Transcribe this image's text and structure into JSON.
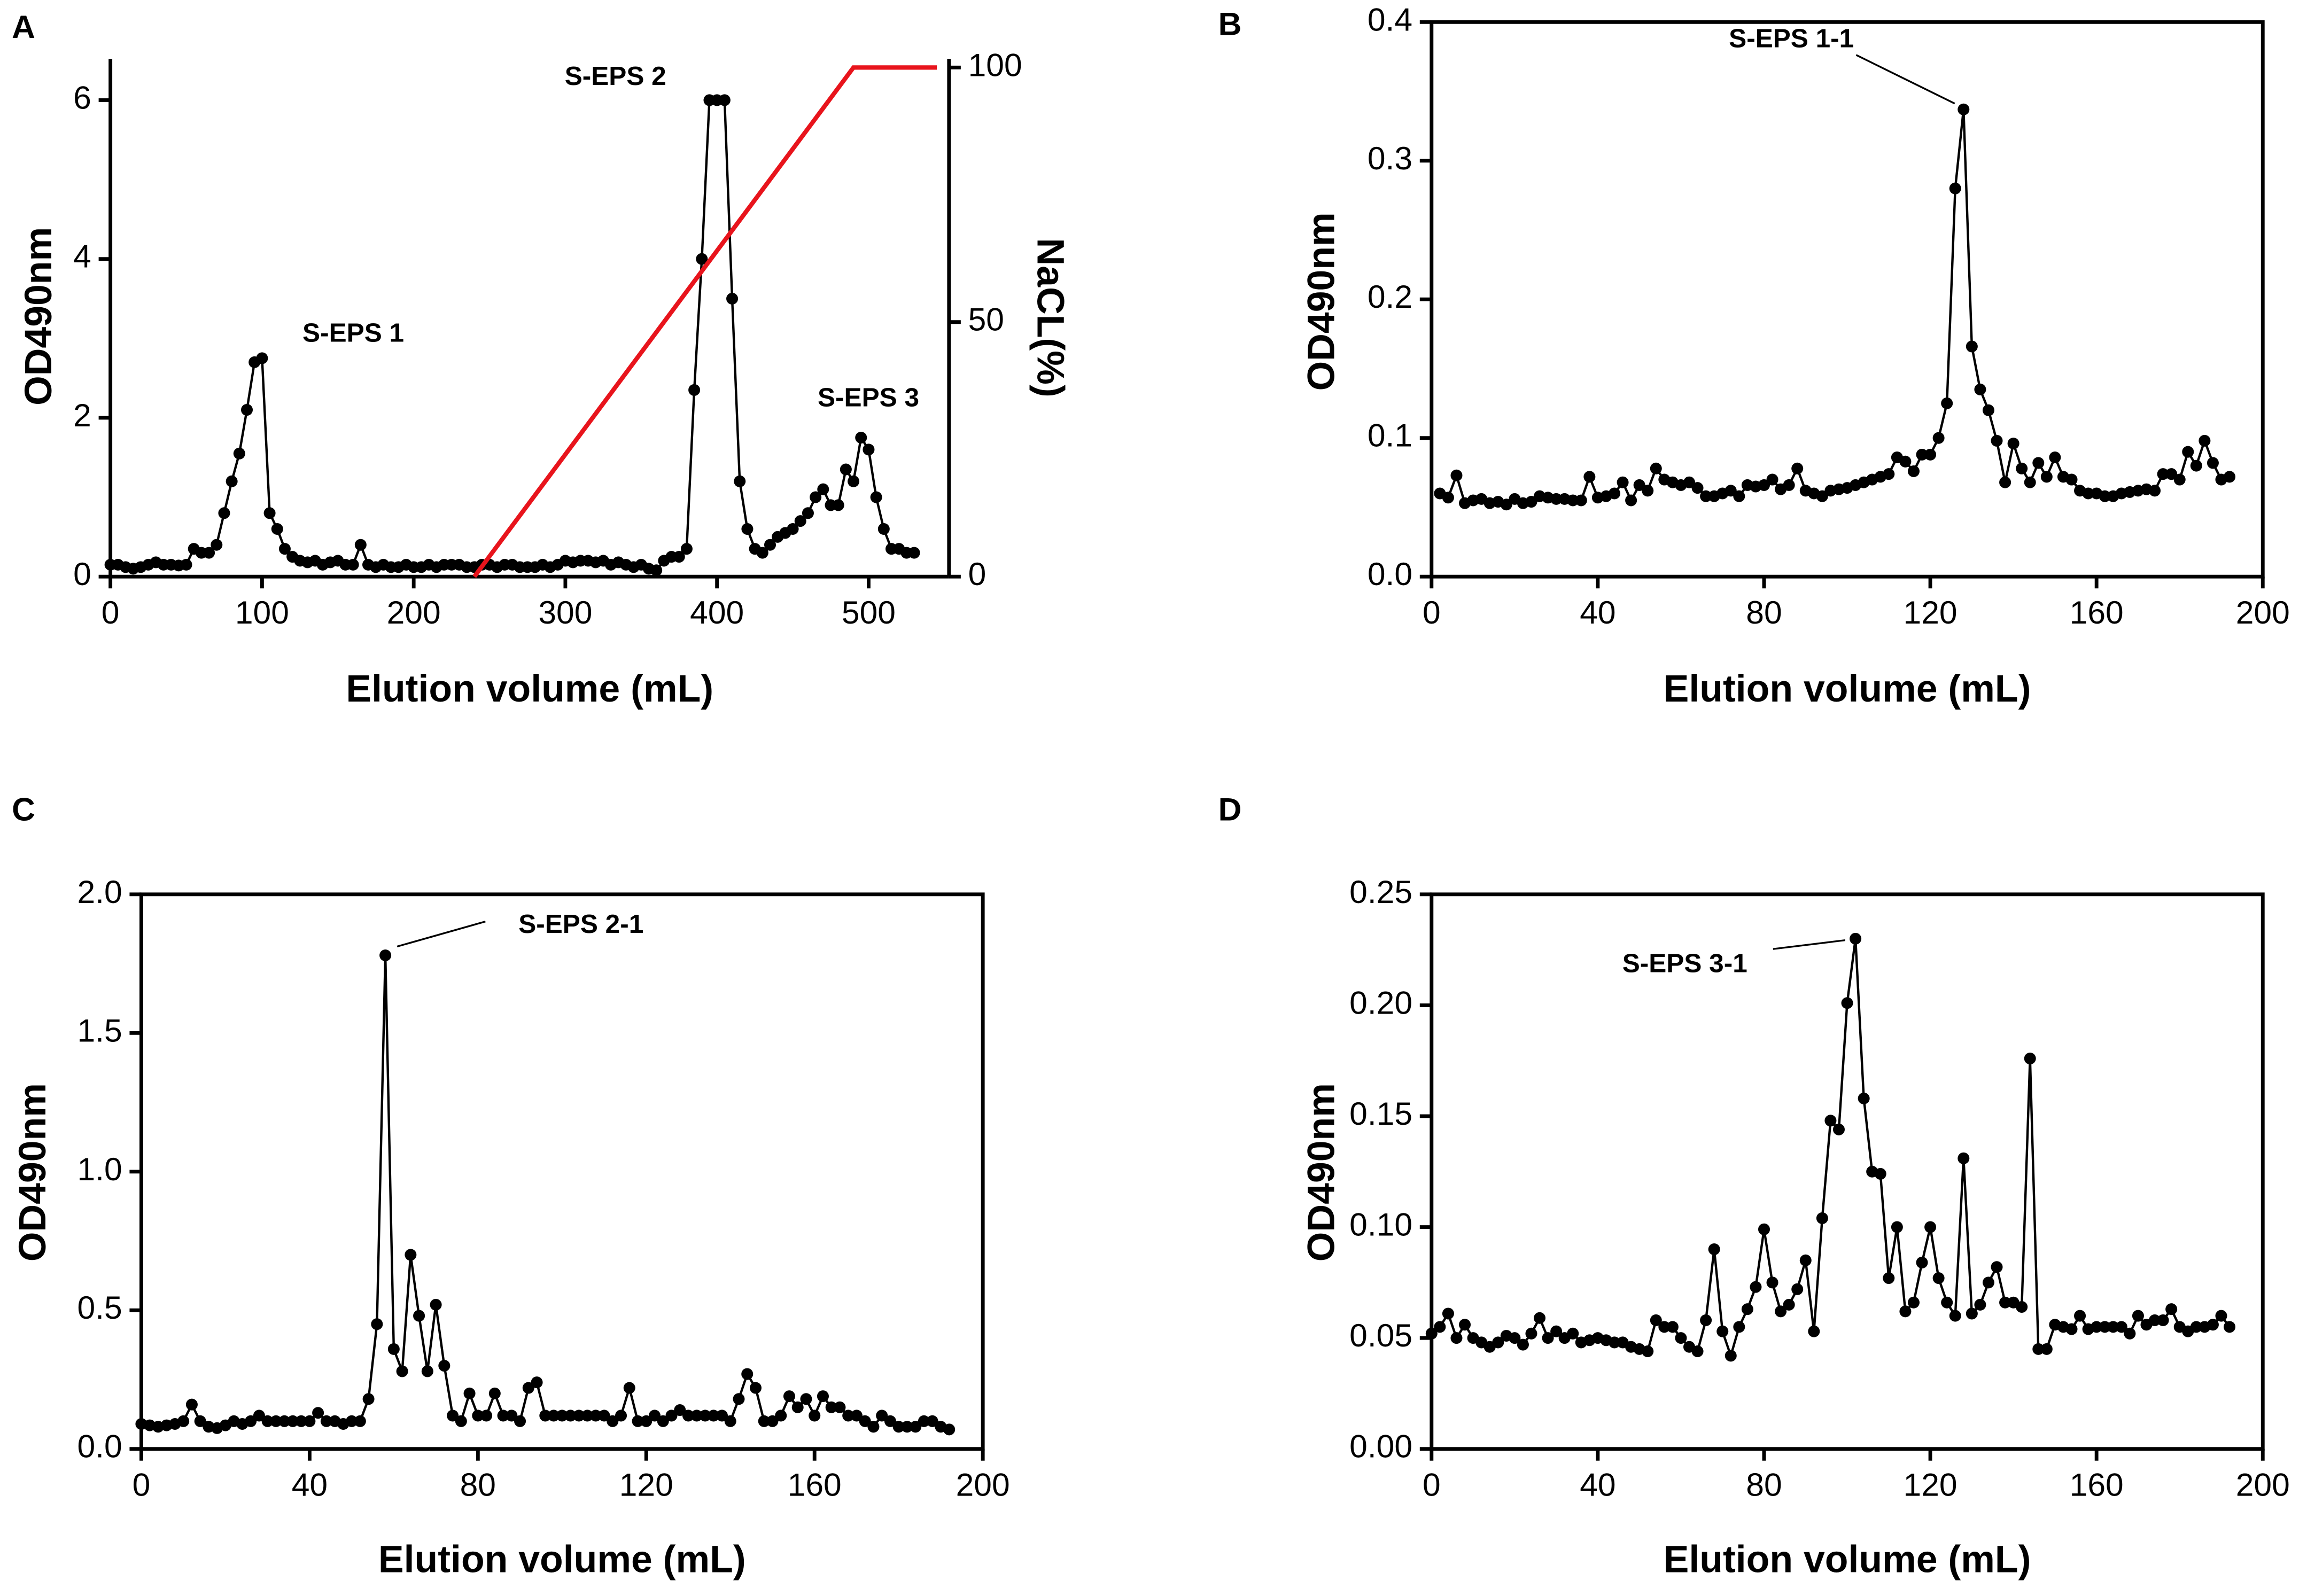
{
  "chart_data": [
    {
      "type": "line",
      "panel": "A",
      "xlabel": "Elution volume (mL)",
      "ylabel": "OD490nm",
      "y2label": "NaCL(%)",
      "xlim": [
        0,
        553
      ],
      "xticks": [
        0,
        100,
        200,
        300,
        400,
        500
      ],
      "ylim": [
        0,
        6.52
      ],
      "yticks": [
        0,
        2,
        4,
        6
      ],
      "y2lim": [
        0,
        101.7
      ],
      "y2ticks": [
        0,
        50,
        100
      ],
      "series": [
        {
          "color": "#000000",
          "markers": true,
          "x": [
            0,
            5,
            10,
            15,
            20,
            25,
            30,
            35,
            40,
            45,
            50,
            55,
            60,
            65,
            70,
            75,
            80,
            85,
            90,
            95,
            100,
            105,
            110,
            115,
            120,
            125,
            130,
            135,
            140,
            145,
            150,
            155,
            160,
            165,
            170,
            175,
            180,
            185,
            190,
            195,
            200,
            205,
            210,
            215,
            220,
            225,
            230,
            235,
            240,
            245,
            250,
            255,
            260,
            265,
            270,
            275,
            280,
            285,
            290,
            295,
            300,
            305,
            310,
            315,
            320,
            325,
            330,
            335,
            340,
            345,
            350,
            355,
            360,
            365,
            370,
            375,
            380,
            385,
            390,
            395,
            400,
            405,
            410,
            415,
            420,
            425,
            430,
            435,
            440,
            445,
            450,
            455,
            460,
            465,
            470,
            475,
            480,
            485,
            490,
            495,
            500,
            505,
            510,
            515,
            520,
            525,
            530
          ],
          "values": [
            0.15,
            0.15,
            0.12,
            0.1,
            0.12,
            0.15,
            0.18,
            0.15,
            0.15,
            0.14,
            0.15,
            0.35,
            0.3,
            0.3,
            0.4,
            0.8,
            1.2,
            1.55,
            2.1,
            2.7,
            2.75,
            0.8,
            0.6,
            0.35,
            0.25,
            0.2,
            0.18,
            0.2,
            0.15,
            0.18,
            0.2,
            0.15,
            0.15,
            0.4,
            0.15,
            0.12,
            0.15,
            0.12,
            0.12,
            0.15,
            0.12,
            0.12,
            0.15,
            0.12,
            0.15,
            0.15,
            0.15,
            0.12,
            0.12,
            0.15,
            0.15,
            0.12,
            0.15,
            0.15,
            0.12,
            0.12,
            0.12,
            0.15,
            0.12,
            0.15,
            0.2,
            0.18,
            0.2,
            0.2,
            0.18,
            0.2,
            0.15,
            0.18,
            0.15,
            0.12,
            0.15,
            0.1,
            0.08,
            0.2,
            0.25,
            0.25,
            0.35,
            2.35,
            4.0,
            6.0,
            6.0,
            6.0,
            3.5,
            1.2,
            0.6,
            0.35,
            0.3,
            0.4,
            0.5,
            0.55,
            0.6,
            0.7,
            0.8,
            1.0,
            1.1,
            0.9,
            0.9,
            1.35,
            1.2,
            1.75,
            1.6,
            1.0,
            0.6,
            0.35,
            0.35,
            0.3,
            0.3
          ]
        },
        {
          "color": "#e8141c",
          "markers": false,
          "axis": "y2",
          "x": [
            240,
            490,
            545
          ],
          "values": [
            0,
            100,
            100
          ]
        }
      ],
      "annotations": [
        {
          "text": "S-EPS 1",
          "x": 100,
          "y": 2.75
        },
        {
          "text": "S-EPS 2",
          "x": 400,
          "y": 6.0
        },
        {
          "text": "S-EPS 3",
          "x": 495,
          "y": 1.75
        }
      ]
    },
    {
      "type": "line",
      "panel": "B",
      "xlabel": "Elution volume (mL)",
      "ylabel": "OD490nm",
      "xlim": [
        0,
        200
      ],
      "xticks": [
        0,
        40,
        80,
        120,
        160,
        200
      ],
      "ylim": [
        0,
        0.4
      ],
      "yticks": [
        {
          "value": 0,
          "label": "0.0"
        },
        0.1,
        0.2,
        0.3,
        0.4
      ],
      "color": "#000000",
      "markers": true,
      "x": [
        2,
        4,
        6,
        8,
        10,
        12,
        14,
        16,
        18,
        20,
        22,
        24,
        26,
        28,
        30,
        32,
        34,
        36,
        38,
        40,
        42,
        44,
        46,
        48,
        50,
        52,
        54,
        56,
        58,
        60,
        62,
        64,
        66,
        68,
        70,
        72,
        74,
        76,
        78,
        80,
        82,
        84,
        86,
        88,
        90,
        92,
        94,
        96,
        98,
        100,
        102,
        104,
        106,
        108,
        110,
        112,
        114,
        116,
        118,
        120,
        122,
        124,
        126,
        128,
        130,
        132,
        134,
        136,
        138,
        140,
        142,
        144,
        146,
        148,
        150,
        152,
        154,
        156,
        158,
        160,
        162,
        164,
        166,
        168,
        170,
        172,
        174,
        176,
        178,
        180,
        182,
        184,
        186,
        188,
        190,
        192
      ],
      "values": [
        0.06,
        0.057,
        0.073,
        0.053,
        0.055,
        0.056,
        0.053,
        0.054,
        0.052,
        0.056,
        0.053,
        0.054,
        0.058,
        0.057,
        0.056,
        0.056,
        0.055,
        0.055,
        0.072,
        0.057,
        0.058,
        0.06,
        0.068,
        0.055,
        0.066,
        0.062,
        0.078,
        0.07,
        0.068,
        0.066,
        0.068,
        0.064,
        0.058,
        0.058,
        0.06,
        0.062,
        0.058,
        0.066,
        0.065,
        0.066,
        0.07,
        0.063,
        0.066,
        0.078,
        0.062,
        0.06,
        0.058,
        0.062,
        0.063,
        0.064,
        0.066,
        0.068,
        0.07,
        0.072,
        0.074,
        0.086,
        0.083,
        0.076,
        0.088,
        0.088,
        0.1,
        0.125,
        0.28,
        0.337,
        0.166,
        0.135,
        0.12,
        0.098,
        0.068,
        0.096,
        0.078,
        0.068,
        0.082,
        0.072,
        0.086,
        0.072,
        0.07,
        0.062,
        0.06,
        0.06,
        0.058,
        0.058,
        0.06,
        0.061,
        0.062,
        0.063,
        0.062,
        0.074,
        0.074,
        0.07,
        0.09,
        0.08,
        0.098,
        0.082,
        0.07,
        0.072
      ],
      "annotations": [
        {
          "text": "S-EPS 1-1",
          "x": 128,
          "y": 0.337
        }
      ]
    },
    {
      "type": "line",
      "panel": "C",
      "xlabel": "Elution volume (mL)",
      "ylabel": "OD490nm",
      "xlim": [
        0,
        200
      ],
      "xticks": [
        0,
        40,
        80,
        120,
        160,
        200
      ],
      "ylim": [
        0,
        2
      ],
      "yticks": [
        {
          "value": 0,
          "label": "0.0"
        },
        0.5,
        {
          "value": 1,
          "label": "1.0"
        },
        1.5,
        {
          "value": 2,
          "label": "2.0"
        }
      ],
      "color": "#000000",
      "markers": true,
      "x": [
        0,
        2,
        4,
        6,
        8,
        10,
        12,
        14,
        16,
        18,
        20,
        22,
        24,
        26,
        28,
        30,
        32,
        34,
        36,
        38,
        40,
        42,
        44,
        46,
        48,
        50,
        52,
        54,
        56,
        58,
        60,
        62,
        64,
        66,
        68,
        70,
        72,
        74,
        76,
        78,
        80,
        82,
        84,
        86,
        88,
        90,
        92,
        94,
        96,
        98,
        100,
        102,
        104,
        106,
        108,
        110,
        112,
        114,
        116,
        118,
        120,
        122,
        124,
        126,
        128,
        130,
        132,
        134,
        136,
        138,
        140,
        142,
        144,
        146,
        148,
        150,
        152,
        154,
        156,
        158,
        160,
        162,
        164,
        166,
        168,
        170,
        172,
        174,
        176,
        178,
        180,
        182,
        184,
        186,
        188,
        190,
        192
      ],
      "values": [
        0.09,
        0.085,
        0.08,
        0.085,
        0.09,
        0.1,
        0.16,
        0.1,
        0.08,
        0.075,
        0.085,
        0.1,
        0.09,
        0.1,
        0.12,
        0.1,
        0.1,
        0.1,
        0.1,
        0.1,
        0.1,
        0.13,
        0.1,
        0.1,
        0.09,
        0.1,
        0.1,
        0.18,
        0.45,
        1.78,
        0.36,
        0.28,
        0.7,
        0.48,
        0.28,
        0.52,
        0.3,
        0.12,
        0.1,
        0.2,
        0.12,
        0.12,
        0.2,
        0.12,
        0.12,
        0.1,
        0.22,
        0.24,
        0.12,
        0.12,
        0.12,
        0.12,
        0.12,
        0.12,
        0.12,
        0.12,
        0.1,
        0.12,
        0.22,
        0.1,
        0.1,
        0.12,
        0.1,
        0.12,
        0.14,
        0.12,
        0.12,
        0.12,
        0.12,
        0.12,
        0.1,
        0.18,
        0.27,
        0.22,
        0.1,
        0.1,
        0.12,
        0.19,
        0.15,
        0.18,
        0.12,
        0.19,
        0.15,
        0.15,
        0.12,
        0.12,
        0.1,
        0.08,
        0.12,
        0.1,
        0.08,
        0.08,
        0.08,
        0.1,
        0.1,
        0.08,
        0.07
      ],
      "annotations": [
        {
          "text": "S-EPS 2-1",
          "x": 58,
          "y": 1.78
        }
      ]
    },
    {
      "type": "line",
      "panel": "D",
      "xlabel": "Elution volume (mL)",
      "ylabel": "OD490nm",
      "xlim": [
        0,
        200
      ],
      "xticks": [
        0,
        40,
        80,
        120,
        160,
        200
      ],
      "ylim": [
        0,
        0.25
      ],
      "yticks": [
        {
          "value": 0,
          "label": "0.00"
        },
        0.05,
        {
          "value": 0.1,
          "label": "0.10"
        },
        0.15,
        {
          "value": 0.2,
          "label": "0.20"
        },
        0.25
      ],
      "color": "#000000",
      "markers": true,
      "x": [
        0,
        2,
        4,
        6,
        8,
        10,
        12,
        14,
        16,
        18,
        20,
        22,
        24,
        26,
        28,
        30,
        32,
        34,
        36,
        38,
        40,
        42,
        44,
        46,
        48,
        50,
        52,
        54,
        56,
        58,
        60,
        62,
        64,
        66,
        68,
        70,
        72,
        74,
        76,
        78,
        80,
        82,
        84,
        86,
        88,
        90,
        92,
        94,
        96,
        98,
        100,
        102,
        104,
        106,
        108,
        110,
        112,
        114,
        116,
        118,
        120,
        122,
        124,
        126,
        128,
        130,
        132,
        134,
        136,
        138,
        140,
        142,
        144,
        146,
        148,
        150,
        152,
        154,
        156,
        158,
        160,
        162,
        164,
        166,
        168,
        170,
        172,
        174,
        176,
        178,
        180,
        182,
        184,
        186,
        188,
        190,
        192
      ],
      "values": [
        0.052,
        0.055,
        0.061,
        0.05,
        0.056,
        0.05,
        0.048,
        0.046,
        0.048,
        0.051,
        0.05,
        0.047,
        0.052,
        0.059,
        0.05,
        0.053,
        0.05,
        0.052,
        0.048,
        0.049,
        0.05,
        0.049,
        0.048,
        0.048,
        0.046,
        0.045,
        0.044,
        0.058,
        0.055,
        0.055,
        0.05,
        0.046,
        0.044,
        0.058,
        0.09,
        0.053,
        0.042,
        0.055,
        0.063,
        0.073,
        0.099,
        0.075,
        0.062,
        0.065,
        0.072,
        0.085,
        0.053,
        0.104,
        0.148,
        0.144,
        0.201,
        0.23,
        0.158,
        0.125,
        0.124,
        0.077,
        0.1,
        0.062,
        0.066,
        0.084,
        0.1,
        0.077,
        0.066,
        0.06,
        0.131,
        0.061,
        0.065,
        0.075,
        0.082,
        0.066,
        0.066,
        0.064,
        0.176,
        0.045,
        0.045,
        0.056,
        0.055,
        0.054,
        0.06,
        0.054,
        0.055,
        0.055,
        0.055,
        0.055,
        0.052,
        0.06,
        0.056,
        0.058,
        0.058,
        0.063,
        0.055,
        0.053,
        0.055,
        0.055,
        0.056,
        0.06,
        0.055
      ],
      "annotations": [
        {
          "text": "S-EPS 3-1",
          "x": 102,
          "y": 0.23
        }
      ]
    }
  ]
}
